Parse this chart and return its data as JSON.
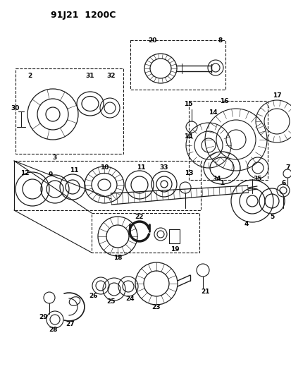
{
  "title": "91J21  1200C",
  "bg_color": "#ffffff",
  "fig_width": 4.14,
  "fig_height": 5.33,
  "dpi": 100,
  "line_color": "#1a1a1a",
  "lw": 0.8
}
